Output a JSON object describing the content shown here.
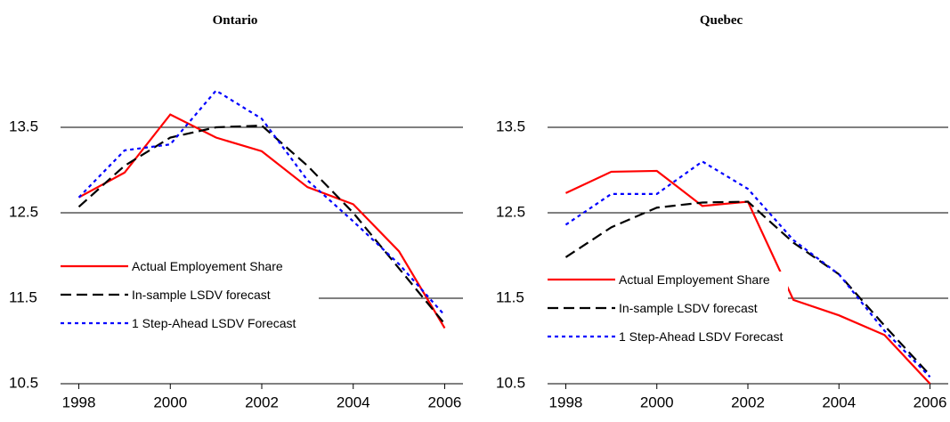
{
  "chart_data": [
    {
      "type": "line",
      "title": "Ontario",
      "x": [
        1998,
        1999,
        2000,
        2001,
        2002,
        2003,
        2004,
        2005,
        2006
      ],
      "xlim": [
        1997.6,
        2006.4
      ],
      "xticks": [
        1998,
        2000,
        2002,
        2004,
        2006
      ],
      "ylim": [
        10.5,
        14.5
      ],
      "yticks": [
        10.5,
        11.5,
        12.5,
        13.5
      ],
      "grid": true,
      "series": [
        {
          "name": "Actual Employement Share",
          "color": "#ff0000",
          "dash": "solid",
          "values": [
            12.68,
            12.97,
            13.65,
            13.38,
            13.22,
            12.8,
            12.6,
            12.05,
            11.15
          ]
        },
        {
          "name": "In-sample LSDV forecast",
          "color": "#000000",
          "dash": "dashed",
          "values": [
            12.57,
            13.05,
            13.38,
            13.5,
            13.52,
            13.05,
            12.5,
            11.85,
            11.2
          ]
        },
        {
          "name": "1 Step-Ahead LSDV Forecast",
          "color": "#0000ff",
          "dash": "dotted",
          "values": [
            12.68,
            13.23,
            13.3,
            13.93,
            13.6,
            12.88,
            12.4,
            11.9,
            11.3
          ]
        }
      ]
    },
    {
      "type": "line",
      "title": "Quebec",
      "x": [
        1998,
        1999,
        2000,
        2001,
        2002,
        2003,
        2004,
        2005,
        2006
      ],
      "xlim": [
        1997.6,
        2006.4
      ],
      "xticks": [
        1998,
        2000,
        2002,
        2004,
        2006
      ],
      "ylim": [
        10.5,
        14.5
      ],
      "yticks": [
        10.5,
        11.5,
        12.5,
        13.5
      ],
      "grid": true,
      "series": [
        {
          "name": "Actual Employement Share",
          "color": "#ff0000",
          "dash": "solid",
          "values": [
            12.73,
            12.98,
            12.99,
            12.58,
            12.63,
            11.48,
            11.3,
            11.07,
            10.5
          ]
        },
        {
          "name": "In-sample LSDV forecast",
          "color": "#000000",
          "dash": "dashed",
          "values": [
            11.98,
            12.33,
            12.56,
            12.62,
            12.63,
            12.15,
            11.78,
            11.18,
            10.6
          ]
        },
        {
          "name": "1 Step-Ahead LSDV Forecast",
          "color": "#0000ff",
          "dash": "dotted",
          "values": [
            12.36,
            12.72,
            12.72,
            13.1,
            12.78,
            12.18,
            11.78,
            11.12,
            10.58
          ]
        }
      ]
    }
  ]
}
